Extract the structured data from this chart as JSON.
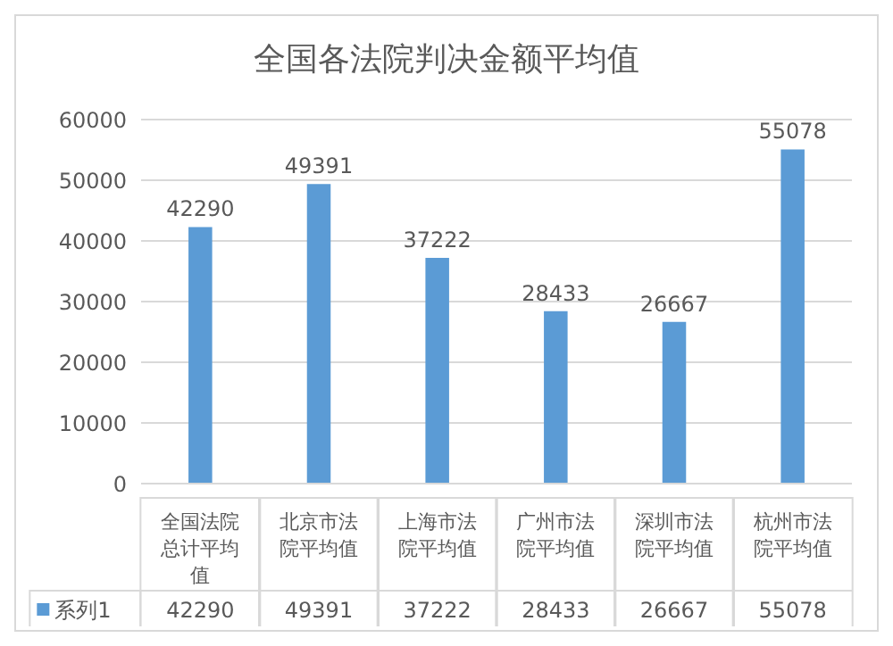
{
  "chart_data": {
    "type": "bar",
    "title": "全国各法院判决金额平均值",
    "categories": [
      "全国法院总计平均值",
      "北京市法院平均值",
      "上海市法院平均值",
      "广州市法院平均值",
      "深圳市法院平均值",
      "杭州市法院平均值"
    ],
    "series": [
      {
        "name": "系列1",
        "color": "#5b9bd5",
        "values": [
          42290,
          49391,
          37222,
          28433,
          26667,
          55078
        ],
        "value_labels": [
          "42290",
          "49391",
          "37222",
          "28433",
          "26667",
          "55078"
        ]
      }
    ],
    "ylim": [
      0,
      60000
    ],
    "yticks": [
      0,
      10000,
      20000,
      30000,
      40000,
      50000,
      60000
    ],
    "grid": "y",
    "data_labels": true,
    "legend": "bottom"
  }
}
